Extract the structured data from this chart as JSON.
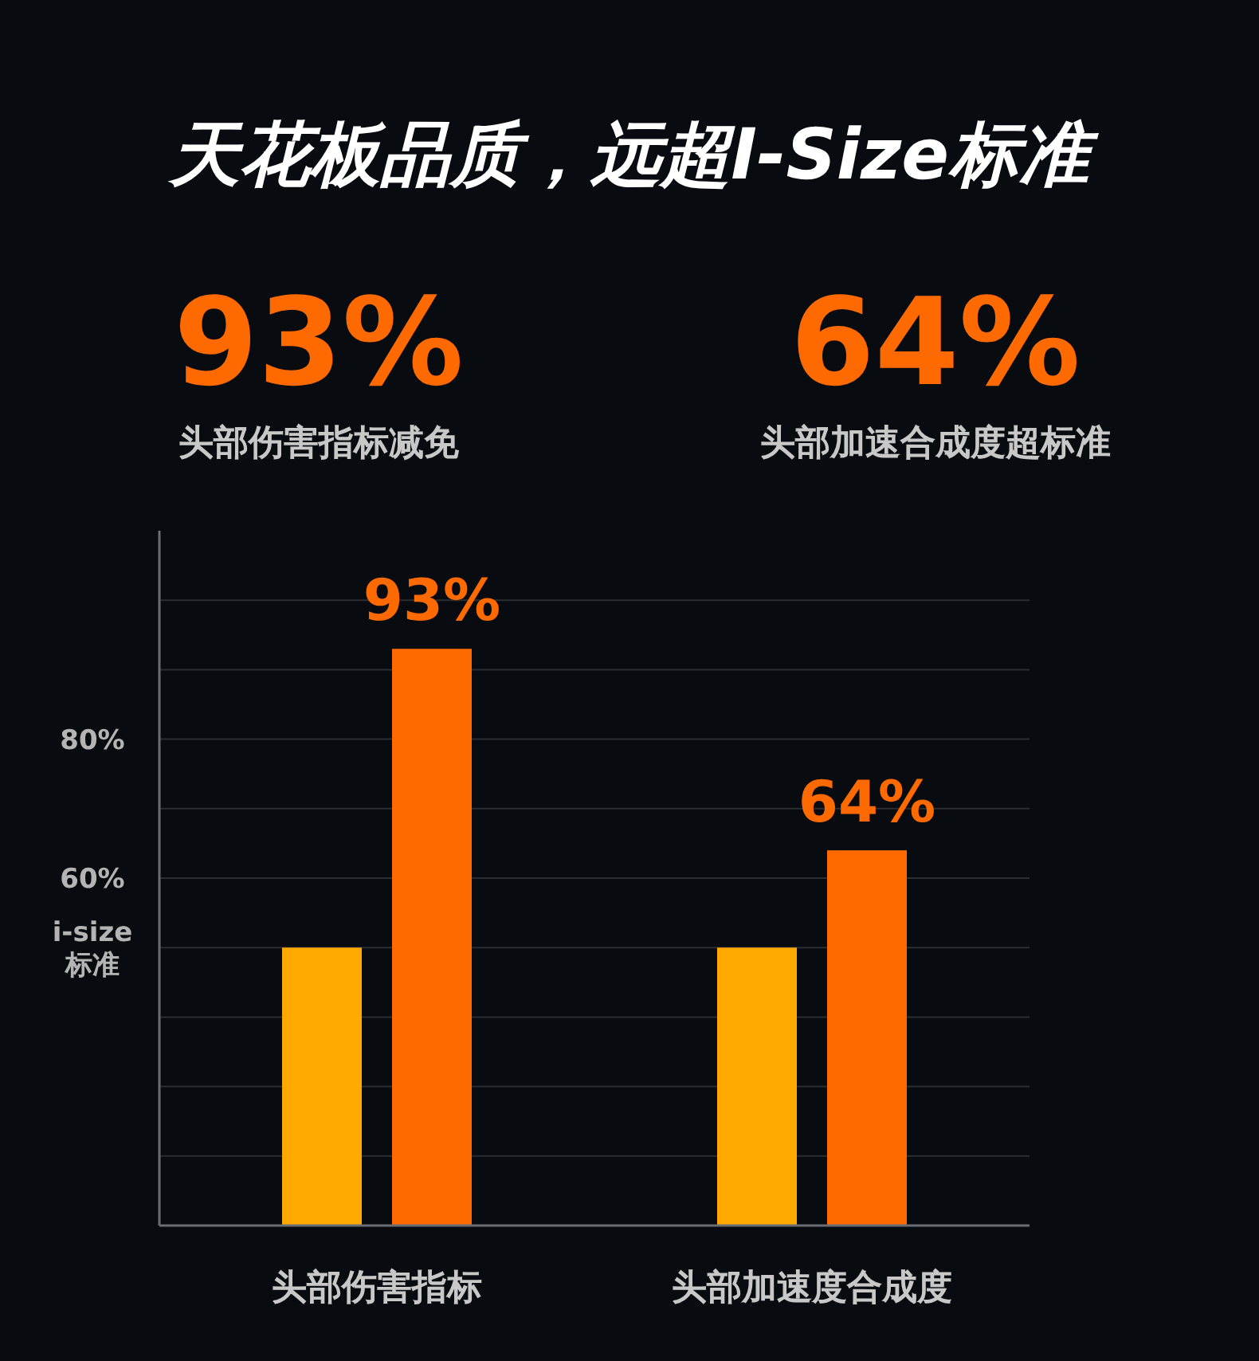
{
  "chart_data": {
    "type": "bar",
    "title": "天花板品质，远超I-Size标准",
    "annotations": [
      "93%",
      "头部伤害指标减免",
      "64%",
      "头部加速合成度超标准"
    ],
    "categories": [
      "头部伤害指标",
      "头部加速度合成度"
    ],
    "series": [
      {
        "color": "#ffa800",
        "values": [
          50,
          50
        ],
        "value_labels": [
          null,
          null
        ]
      },
      {
        "color": "#ff6a00",
        "values": [
          93,
          64
        ],
        "value_labels": [
          "93%",
          "64%"
        ]
      }
    ],
    "ylim": [
      10,
      110
    ],
    "yticks": [
      {
        "value": 20,
        "label": null
      },
      {
        "value": 30,
        "label": null
      },
      {
        "value": 40,
        "label": null
      },
      {
        "value": 50,
        "label": "i-size 标准"
      },
      {
        "value": 60,
        "label": "60%"
      },
      {
        "value": 70,
        "label": null
      },
      {
        "value": 80,
        "label": "80%"
      },
      {
        "value": 90,
        "label": null
      },
      {
        "value": 100,
        "label": null
      }
    ],
    "grid": "y"
  }
}
